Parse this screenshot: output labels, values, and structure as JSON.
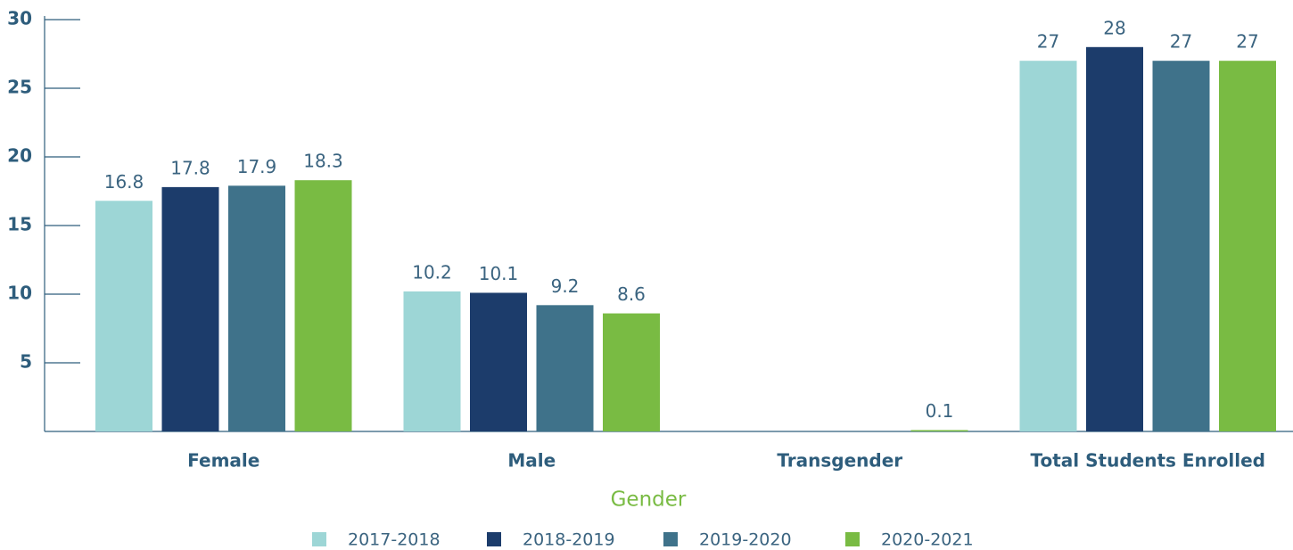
{
  "chart_data": {
    "type": "bar",
    "x_label": "Gender",
    "categories": [
      "Female",
      "Male",
      "Transgender",
      "Total Students Enrolled"
    ],
    "series": [
      {
        "name": "2017-2018",
        "color": "#9dd6d6",
        "values": [
          16.8,
          10.2,
          null,
          27
        ]
      },
      {
        "name": "2018-2019",
        "color": "#1c3c6b",
        "values": [
          17.8,
          10.1,
          null,
          28
        ]
      },
      {
        "name": "2019-2020",
        "color": "#3f728a",
        "values": [
          17.9,
          9.2,
          null,
          27
        ]
      },
      {
        "name": "2020-2021",
        "color": "#79bb43",
        "values": [
          18.3,
          8.6,
          0.1,
          27
        ]
      }
    ],
    "ylim": [
      0,
      30
    ],
    "yticks": [
      5,
      10,
      15,
      20,
      25,
      30
    ],
    "legend": "bottom",
    "grid": false
  }
}
